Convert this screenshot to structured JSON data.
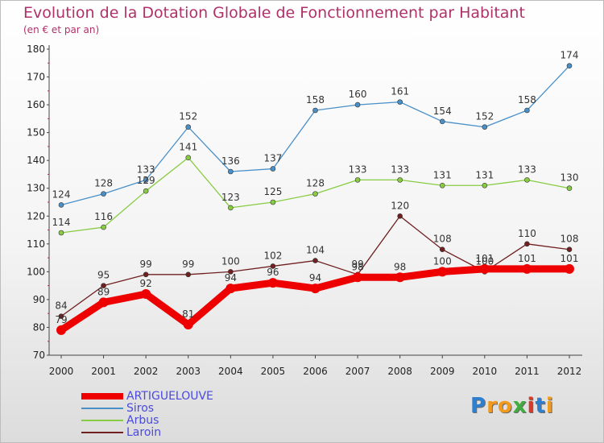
{
  "header": {
    "title": "Evolution de la Dotation Globale de Fonctionnement par Habitant",
    "subtitle": "(en € et par an)"
  },
  "logo": {
    "text": "Proxiti",
    "letters": [
      "P",
      "r",
      "o",
      "x",
      "i",
      "t",
      "i"
    ],
    "colors": [
      "#2f7fd0",
      "#f29a1c",
      "#f29a1c",
      "#3fae3f",
      "#d63a2a",
      "#2f7fd0",
      "#f29a1c"
    ]
  },
  "chart_data": {
    "type": "line",
    "title": "Evolution de la Dotation Globale de Fonctionnement par Habitant",
    "subtitle": "(en € et par an)",
    "x": [
      "2000",
      "2001",
      "2002",
      "2003",
      "2004",
      "2005",
      "2006",
      "2007",
      "2008",
      "2009",
      "2010",
      "2011",
      "2012"
    ],
    "ylim": [
      70,
      180
    ],
    "yticks": [
      70,
      80,
      90,
      100,
      110,
      120,
      130,
      140,
      150,
      160,
      170,
      180
    ],
    "grid": false,
    "legend_position": "bottom-left",
    "series": [
      {
        "name": "ARTIGUELOUVE",
        "color": "#ee0000",
        "values": [
          79,
          89,
          92,
          81,
          94,
          96,
          94,
          98,
          98,
          100,
          101,
          101,
          101
        ]
      },
      {
        "name": "Siros",
        "color": "#4a90c8",
        "values": [
          124,
          128,
          133,
          152,
          136,
          137,
          158,
          160,
          161,
          154,
          152,
          158,
          174
        ]
      },
      {
        "name": "Arbus",
        "color": "#88cc44",
        "values": [
          114,
          116,
          129,
          141,
          123,
          125,
          128,
          133,
          133,
          131,
          131,
          133,
          130
        ]
      },
      {
        "name": "Laroin",
        "color": "#702020",
        "values": [
          84,
          95,
          99,
          99,
          100,
          102,
          104,
          99,
          120,
          108,
          100,
          110,
          108
        ]
      }
    ]
  }
}
